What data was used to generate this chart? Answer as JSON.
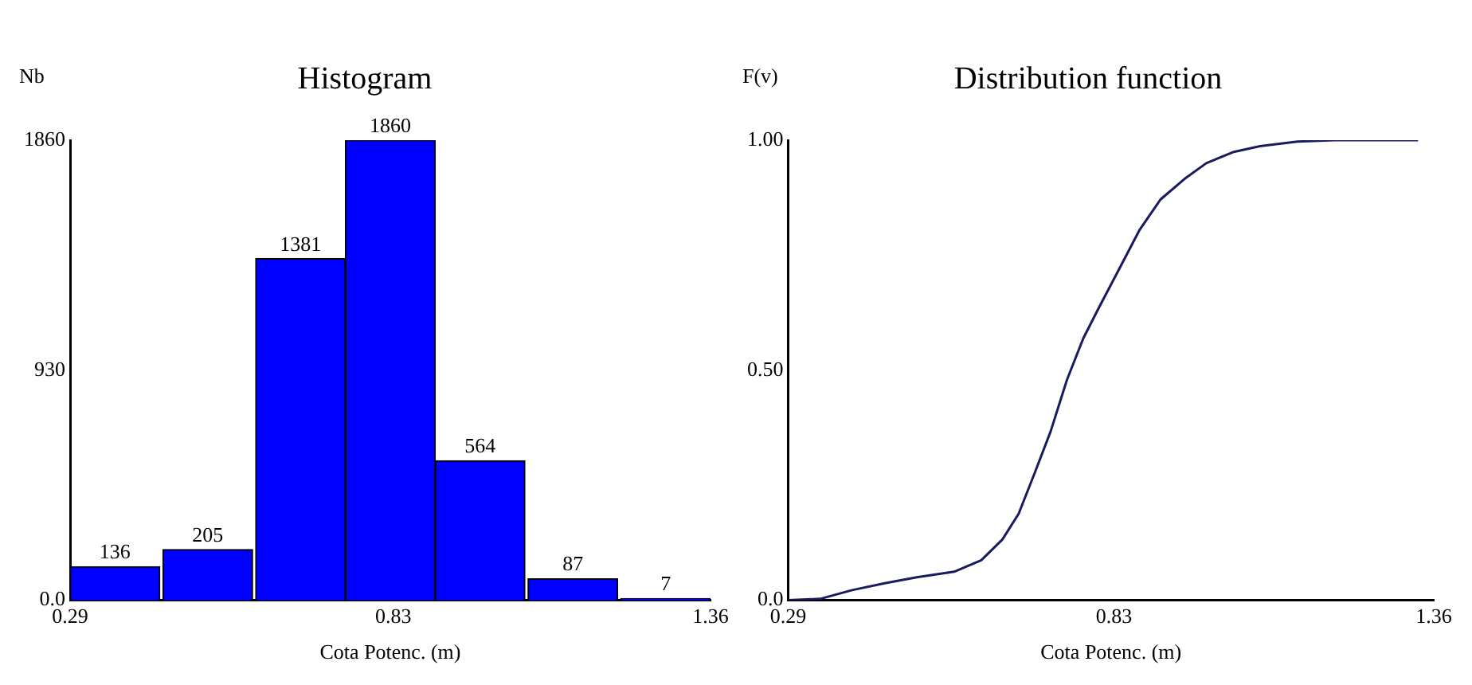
{
  "chart_data": [
    {
      "type": "histogram",
      "title": "Histogram",
      "xlabel": "Cota Potenc. (m)",
      "ylabel": "Nb",
      "bins": [
        0.29,
        0.44,
        0.6,
        0.75,
        0.9,
        1.05,
        1.21,
        1.36
      ],
      "values": [
        136,
        205,
        1381,
        1860,
        564,
        87,
        7
      ],
      "color": "#0000ff",
      "xlim": [
        0.29,
        1.36
      ],
      "xticks": [
        0.29,
        0.83,
        1.36
      ],
      "ylim": [
        0,
        1860
      ],
      "yticks": [
        {
          "value": 0,
          "label": "0.0"
        },
        930,
        1860
      ],
      "data_labels": true,
      "grid": false
    },
    {
      "type": "line",
      "title": "Distribution function",
      "xlabel": "Cota Potenc. (m)",
      "ylabel": "F(v)",
      "color": "#1a1a5e",
      "x": [
        0.29,
        0.343,
        0.396,
        0.45,
        0.503,
        0.565,
        0.61,
        0.645,
        0.672,
        0.699,
        0.725,
        0.752,
        0.779,
        0.805,
        0.841,
        0.872,
        0.907,
        0.947,
        0.983,
        1.027,
        1.072,
        1.134,
        1.196,
        1.334
      ],
      "values": [
        0,
        0.003,
        0.022,
        0.037,
        0.05,
        0.062,
        0.087,
        0.132,
        0.188,
        0.278,
        0.367,
        0.479,
        0.569,
        0.636,
        0.726,
        0.804,
        0.871,
        0.916,
        0.95,
        0.974,
        0.987,
        0.997,
        1.0,
        1.0
      ],
      "xlim": [
        0.29,
        1.36
      ],
      "xticks": [
        0.29,
        0.83,
        1.36
      ],
      "ylim": [
        0,
        1
      ],
      "yticks": [
        {
          "value": 0,
          "label": "0.0"
        },
        {
          "value": 0.5,
          "label": "0.50"
        },
        {
          "value": 1,
          "label": "1.00"
        }
      ],
      "grid": false
    }
  ]
}
